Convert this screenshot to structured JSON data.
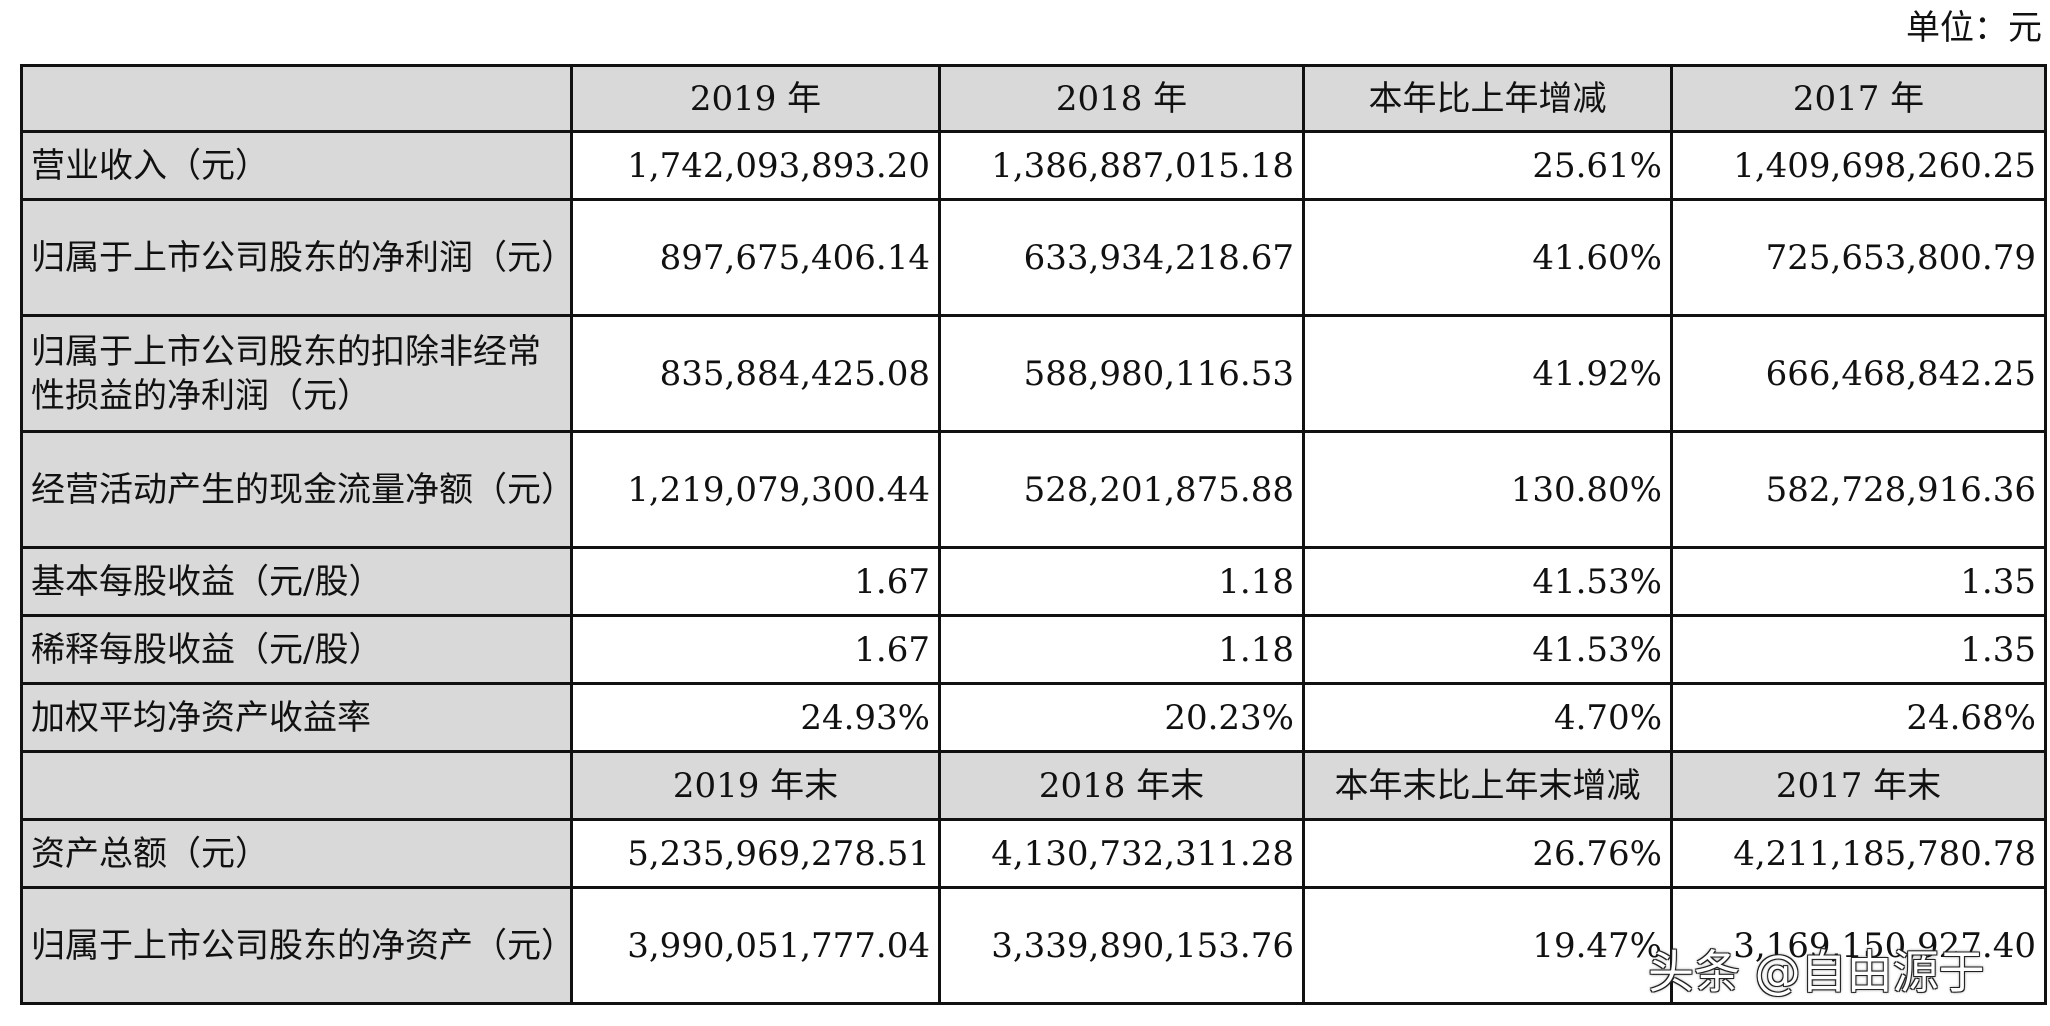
{
  "unit_label": "单位：元",
  "header_top": {
    "col1": "2019 年",
    "col2": "2018 年",
    "col3": "本年比上年增减",
    "col4": "2017 年"
  },
  "rows_top": [
    {
      "label": "营业收入（元）",
      "v2019": "1,742,093,893.20",
      "v2018": "1,386,887,015.18",
      "change": "25.61%",
      "v2017": "1,409,698,260.25"
    },
    {
      "label": "归属于上市公司股东的净利润（元）",
      "v2019": "897,675,406.14",
      "v2018": "633,934,218.67",
      "change": "41.60%",
      "v2017": "725,653,800.79"
    },
    {
      "label": "归属于上市公司股东的扣除非经常性损益的净利润（元）",
      "v2019": "835,884,425.08",
      "v2018": "588,980,116.53",
      "change": "41.92%",
      "v2017": "666,468,842.25"
    },
    {
      "label": "经营活动产生的现金流量净额（元）",
      "v2019": "1,219,079,300.44",
      "v2018": "528,201,875.88",
      "change": "130.80%",
      "v2017": "582,728,916.36"
    },
    {
      "label": "基本每股收益（元/股）",
      "v2019": "1.67",
      "v2018": "1.18",
      "change": "41.53%",
      "v2017": "1.35"
    },
    {
      "label": "稀释每股收益（元/股）",
      "v2019": "1.67",
      "v2018": "1.18",
      "change": "41.53%",
      "v2017": "1.35"
    },
    {
      "label": "加权平均净资产收益率",
      "v2019": "24.93%",
      "v2018": "20.23%",
      "change": "4.70%",
      "v2017": "24.68%"
    }
  ],
  "header_bottom": {
    "col1": "2019 年末",
    "col2": "2018 年末",
    "col3": "本年末比上年末增减",
    "col4": "2017 年末"
  },
  "rows_bottom": [
    {
      "label": "资产总额（元）",
      "v2019": "5,235,969,278.51",
      "v2018": "4,130,732,311.28",
      "change": "26.76%",
      "v2017": "4,211,185,780.78"
    },
    {
      "label": "归属于上市公司股东的净资产（元）",
      "v2019": "3,990,051,777.04",
      "v2018": "3,339,890,153.76",
      "change": "19.47%",
      "v2017": "3,169,150,927.40"
    }
  ],
  "watermark": "头条 @自由源于"
}
